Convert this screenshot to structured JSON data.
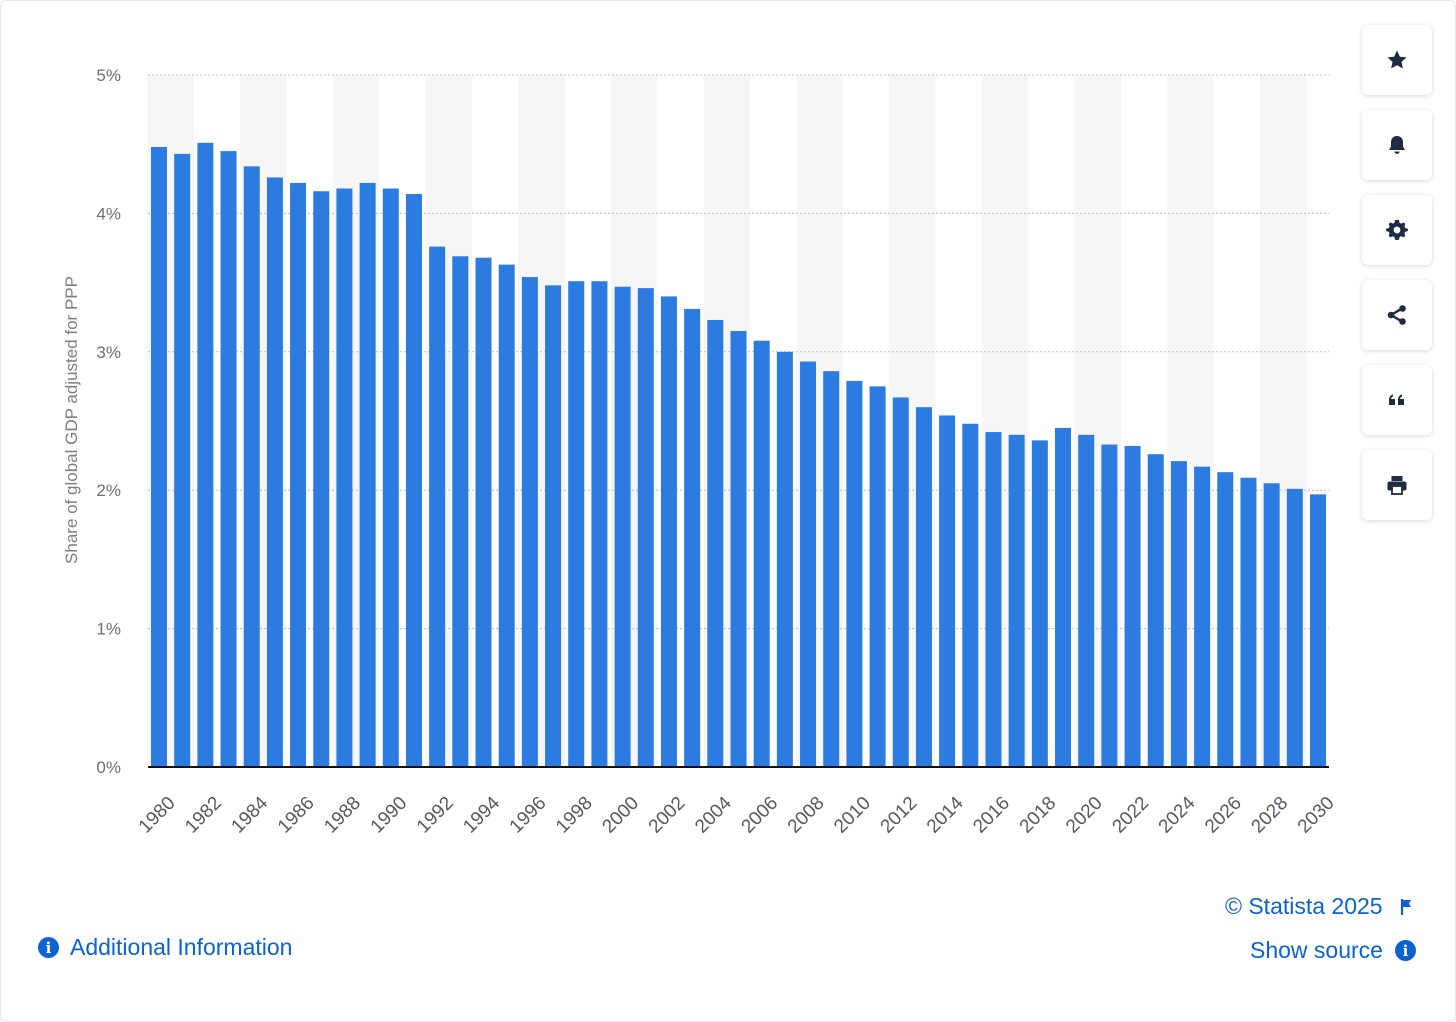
{
  "chart_data": {
    "type": "bar",
    "ylabel": "Share of global GDP adjusted for PPP",
    "ylim": [
      0,
      5
    ],
    "yticks": [
      "0%",
      "1%",
      "2%",
      "3%",
      "4%",
      "5%"
    ],
    "grid": true,
    "color": "#2b7be0",
    "x": [
      1980,
      1981,
      1982,
      1983,
      1984,
      1985,
      1986,
      1987,
      1988,
      1989,
      1990,
      1991,
      1992,
      1993,
      1994,
      1995,
      1996,
      1997,
      1998,
      1999,
      2000,
      2001,
      2002,
      2003,
      2004,
      2005,
      2006,
      2007,
      2008,
      2009,
      2010,
      2011,
      2012,
      2013,
      2014,
      2015,
      2016,
      2017,
      2018,
      2019,
      2020,
      2021,
      2022,
      2023,
      2024,
      2025,
      2026,
      2027,
      2028,
      2029,
      2030
    ],
    "values": [
      4.48,
      4.43,
      4.51,
      4.45,
      4.34,
      4.26,
      4.22,
      4.16,
      4.18,
      4.22,
      4.18,
      4.14,
      3.76,
      3.69,
      3.68,
      3.63,
      3.54,
      3.48,
      3.51,
      3.51,
      3.47,
      3.46,
      3.4,
      3.31,
      3.23,
      3.15,
      3.08,
      3.0,
      2.93,
      2.86,
      2.79,
      2.75,
      2.67,
      2.6,
      2.54,
      2.48,
      2.42,
      2.4,
      2.36,
      2.45,
      2.4,
      2.33,
      2.32,
      2.26,
      2.21,
      2.17,
      2.13,
      2.09,
      2.05,
      2.01,
      1.97
    ],
    "xtick_labels": [
      "1980",
      "1982",
      "1984",
      "1986",
      "1988",
      "1990",
      "1992",
      "1994",
      "1996",
      "1998",
      "2000",
      "2002",
      "2004",
      "2006",
      "2008",
      "2010",
      "2012",
      "2014",
      "2016",
      "2018",
      "2020",
      "2022",
      "2024",
      "2026",
      "2028",
      "2030"
    ]
  },
  "sidebar": {
    "icons": [
      "star-icon",
      "bell-icon",
      "gear-icon",
      "share-icon",
      "quote-icon",
      "print-icon"
    ]
  },
  "footer": {
    "copyright": "© Statista 2025",
    "show_source": "Show source",
    "additional_info": "Additional Information"
  },
  "colors": {
    "accent": "#0b63d1",
    "bar": "#2b7be0"
  }
}
